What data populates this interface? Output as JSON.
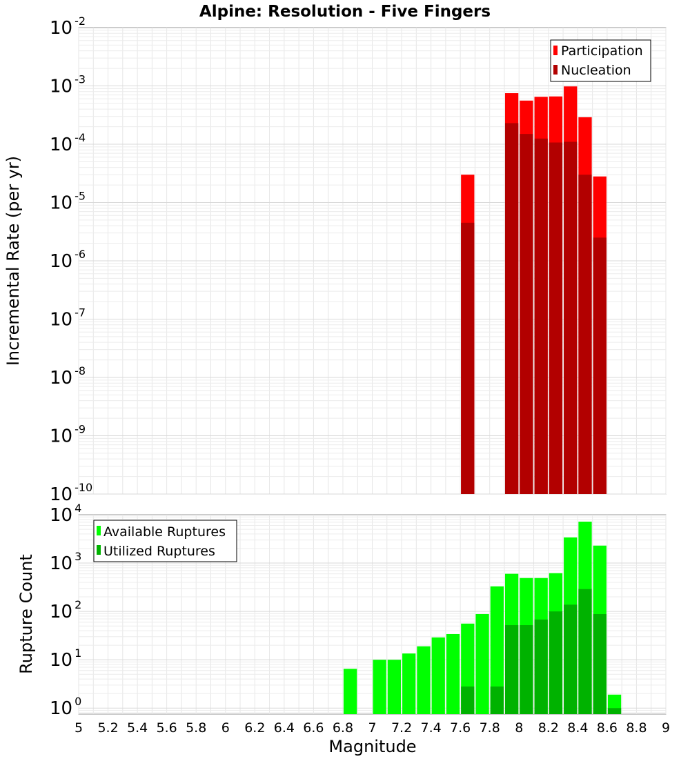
{
  "chart_data": [
    {
      "type": "bar",
      "title": "Alpine: Resolution - Five Fingers",
      "xlabel": "",
      "ylabel": "Incremental Rate (per yr)",
      "yscale": "log",
      "ylim": [
        1e-10,
        0.01
      ],
      "xlim": [
        5,
        9
      ],
      "grid": true,
      "legend_position": "top-right",
      "y_ticks": [
        {
          "base": "10",
          "exp": "-10"
        },
        {
          "base": "10",
          "exp": "-9"
        },
        {
          "base": "10",
          "exp": "-8"
        },
        {
          "base": "10",
          "exp": "-7"
        },
        {
          "base": "10",
          "exp": "-6"
        },
        {
          "base": "10",
          "exp": "-5"
        },
        {
          "base": "10",
          "exp": "-4"
        },
        {
          "base": "10",
          "exp": "-3"
        },
        {
          "base": "10",
          "exp": "-2"
        }
      ],
      "series": [
        {
          "name": "Participation",
          "color": "#ff0000",
          "x": [
            7.65,
            7.95,
            8.05,
            8.15,
            8.25,
            8.35,
            8.45,
            8.55
          ],
          "values": [
            3e-05,
            0.00075,
            0.00056,
            0.00065,
            0.00066,
            0.00098,
            0.00029,
            2.8e-05
          ]
        },
        {
          "name": "Nucleation",
          "color": "#b20000",
          "x": [
            7.65,
            7.95,
            8.05,
            8.15,
            8.25,
            8.35,
            8.45,
            8.55
          ],
          "values": [
            4.5e-06,
            0.00023,
            0.00015,
            0.000125,
            0.000107,
            0.00011,
            3e-05,
            2.5e-06
          ]
        }
      ]
    },
    {
      "type": "bar",
      "title": "",
      "xlabel": "Magnitude",
      "ylabel": "Rupture Count",
      "yscale": "log",
      "ylim": [
        0.75,
        10000
      ],
      "xlim": [
        5,
        9
      ],
      "grid": true,
      "legend_position": "top-left",
      "y_ticks": [
        {
          "base": "10",
          "exp": "0"
        },
        {
          "base": "10",
          "exp": "1"
        },
        {
          "base": "10",
          "exp": "2"
        },
        {
          "base": "10",
          "exp": "3"
        },
        {
          "base": "10",
          "exp": "4"
        }
      ],
      "x_ticks": [
        "5",
        "5.2",
        "5.4",
        "5.6",
        "5.8",
        "6",
        "6.2",
        "6.4",
        "6.6",
        "6.8",
        "7",
        "7.2",
        "7.4",
        "7.6",
        "7.8",
        "8",
        "8.2",
        "8.4",
        "8.6",
        "8.8",
        "9"
      ],
      "series": [
        {
          "name": "Available Ruptures",
          "color": "#00ff00",
          "x": [
            6.85,
            7.05,
            7.15,
            7.25,
            7.35,
            7.45,
            7.55,
            7.65,
            7.75,
            7.85,
            7.95,
            8.05,
            8.15,
            8.25,
            8.35,
            8.45,
            8.55,
            8.65
          ],
          "values": [
            6.5,
            10,
            10,
            13.5,
            19,
            29,
            34,
            56,
            88,
            330,
            600,
            490,
            490,
            620,
            3400,
            7200,
            2300,
            1.9
          ]
        },
        {
          "name": "Utilized Ruptures",
          "color": "#00b200",
          "x": [
            7.65,
            7.85,
            7.95,
            8.05,
            8.15,
            8.25,
            8.35,
            8.45,
            8.55,
            8.65
          ],
          "values": [
            2.8,
            2.8,
            52,
            52,
            68,
            100,
            138,
            290,
            88,
            1.0
          ]
        }
      ]
    }
  ]
}
